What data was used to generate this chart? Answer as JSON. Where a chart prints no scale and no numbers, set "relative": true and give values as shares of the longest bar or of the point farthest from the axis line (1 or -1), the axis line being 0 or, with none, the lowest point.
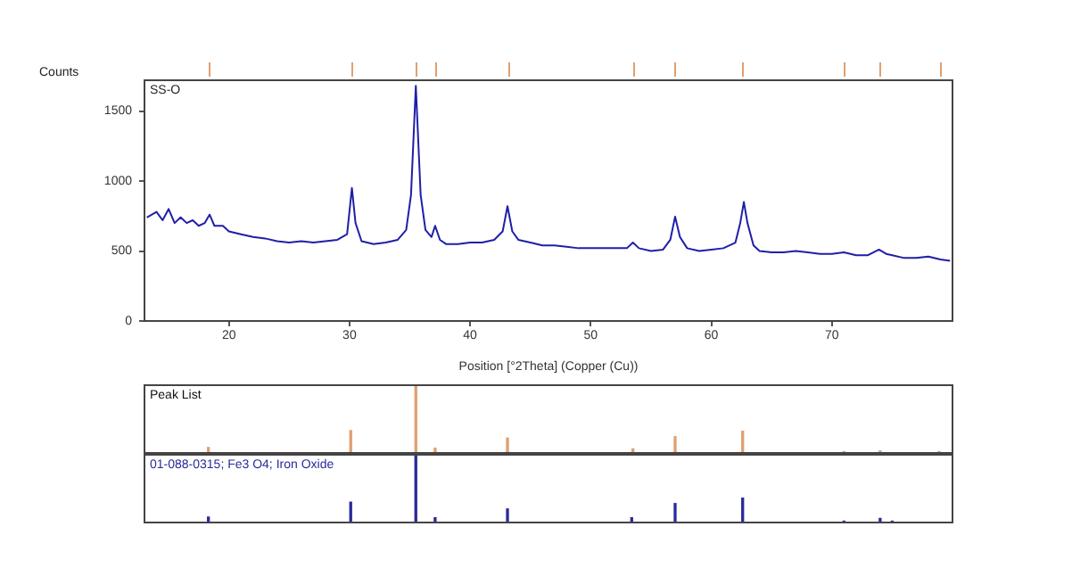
{
  "chart_data": [
    {
      "type": "line",
      "ylabel": "Counts",
      "xlabel": "Position [°2Theta] (Copper (Cu))",
      "annotations": [
        "SS-O"
      ],
      "xlim": [
        13,
        80
      ],
      "ylim": [
        0,
        1720
      ],
      "xticks": [
        20,
        30,
        40,
        50,
        60,
        70
      ],
      "yticks": [
        0,
        500,
        1000,
        1500
      ],
      "grid": false,
      "legend": false,
      "marker": "none",
      "series": [
        {
          "color": "#1f1fa8",
          "x": [
            13.2,
            14,
            14.5,
            15,
            15.5,
            16,
            16.5,
            17,
            17.5,
            18,
            18.4,
            18.8,
            19.5,
            20,
            21,
            22,
            23,
            24,
            25,
            26,
            27,
            28,
            29,
            29.8,
            30.2,
            30.5,
            31,
            32,
            33,
            34,
            34.7,
            35.1,
            35.5,
            35.9,
            36.3,
            36.8,
            37.1,
            37.5,
            38,
            39,
            40,
            41,
            42,
            42.7,
            43.1,
            43.5,
            44,
            45,
            46,
            47,
            48,
            49,
            50,
            51,
            52,
            53,
            53.5,
            54,
            55,
            56,
            56.6,
            57,
            57.4,
            58,
            59,
            60,
            61,
            62,
            62.4,
            62.7,
            63,
            63.5,
            64,
            65,
            66,
            67,
            68,
            69,
            70,
            71,
            72,
            73,
            73.9,
            74.5,
            75,
            76,
            77,
            78,
            79,
            79.8
          ],
          "values": [
            740,
            780,
            720,
            800,
            700,
            740,
            700,
            720,
            680,
            700,
            760,
            680,
            680,
            640,
            620,
            600,
            590,
            570,
            560,
            570,
            560,
            570,
            580,
            620,
            950,
            700,
            570,
            550,
            560,
            580,
            650,
            900,
            1680,
            900,
            650,
            600,
            680,
            580,
            550,
            550,
            560,
            560,
            580,
            640,
            820,
            640,
            580,
            560,
            540,
            540,
            530,
            520,
            520,
            520,
            520,
            520,
            560,
            520,
            500,
            510,
            580,
            745,
            600,
            520,
            500,
            510,
            520,
            560,
            700,
            850,
            700,
            540,
            500,
            490,
            490,
            500,
            490,
            480,
            480,
            490,
            470,
            470,
            510,
            480,
            470,
            450,
            450,
            460,
            440,
            430
          ]
        }
      ]
    },
    {
      "type": "bar",
      "relative": true,
      "tick_labels": false,
      "xlim": [
        13,
        80
      ],
      "annotations": [
        "Peak List"
      ],
      "series": [
        {
          "color": "#e0a070",
          "x": [
            18.3,
            30.1,
            35.5,
            37.1,
            43.1,
            53.5,
            57.0,
            62.6,
            71.0,
            74.0,
            78.9
          ],
          "values": [
            0.08,
            0.33,
            1,
            0.07,
            0.22,
            0.06,
            0.24,
            0.32,
            0.02,
            0.03,
            0.02
          ]
        }
      ]
    },
    {
      "type": "bar",
      "relative": true,
      "tick_labels": false,
      "xlim": [
        13,
        80
      ],
      "annotations": [
        "01-088-0315; Fe3 O4; Iron Oxide"
      ],
      "series": [
        {
          "color": "#2a2a9a",
          "x": [
            18.3,
            30.1,
            35.5,
            37.1,
            43.1,
            53.4,
            57.0,
            62.6,
            71.0,
            74.0,
            75.0
          ],
          "values": [
            0.08,
            0.3,
            1,
            0.07,
            0.2,
            0.07,
            0.28,
            0.36,
            0.02,
            0.06,
            0.02
          ]
        }
      ]
    }
  ]
}
